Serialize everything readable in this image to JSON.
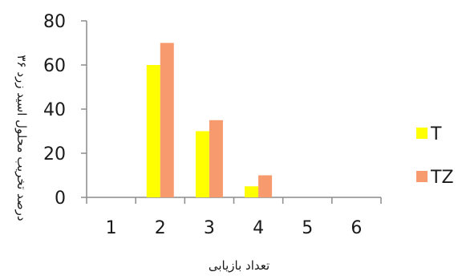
{
  "chart_data": {
    "type": "bar",
    "title": "",
    "xlabel": "تعداد بازیابی",
    "ylabel": "درصد تخریب محلول اسید زرد ۳۶",
    "categories": [
      "1",
      "2",
      "3",
      "4",
      "5",
      "6"
    ],
    "ylim": [
      0,
      80
    ],
    "yticks": [
      0,
      20,
      40,
      60,
      80
    ],
    "grid": false,
    "legend_position": "right",
    "series": [
      {
        "name": "T",
        "color": "#FFFF00",
        "values": [
          0,
          60,
          30,
          5,
          0,
          0
        ]
      },
      {
        "name": "TZ",
        "color": "#F79A6E",
        "values": [
          0,
          70,
          35,
          10,
          0,
          0
        ]
      }
    ]
  }
}
